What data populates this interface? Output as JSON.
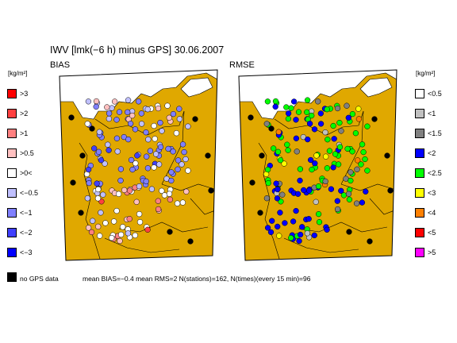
{
  "title": "IWV [lmk(−6 h) minus GPS] 30.06.2007",
  "panels": {
    "bias": {
      "label": "BIAS"
    },
    "rmse": {
      "label": "RMSE"
    }
  },
  "legend_unit": {
    "left": "[kg/m²]",
    "right": "[kg/m²]"
  },
  "bias_legend": [
    {
      "label": ">3",
      "color": "#ff0000"
    },
    {
      "label": ">2",
      "color": "#ff4040"
    },
    {
      "label": ">1",
      "color": "#ff8080"
    },
    {
      "label": ">0.5",
      "color": "#ffc0c0"
    },
    {
      "label": ">0<",
      "color": "#ffffff"
    },
    {
      "label": "<−0.5",
      "color": "#c0c0ff"
    },
    {
      "label": "<−1",
      "color": "#8080ff"
    },
    {
      "label": "<−2",
      "color": "#4040ff"
    },
    {
      "label": "<−3",
      "color": "#0000ff"
    }
  ],
  "rmse_legend": [
    {
      "label": "<0.5",
      "color": "#ffffff"
    },
    {
      "label": "<1",
      "color": "#c0c0c0"
    },
    {
      "label": "<1.5",
      "color": "#808080"
    },
    {
      "label": "<2",
      "color": "#0000ff"
    },
    {
      "label": "<2.5",
      "color": "#00ff00"
    },
    {
      "label": "<3",
      "color": "#ffff00"
    },
    {
      "label": "<4",
      "color": "#ff8000"
    },
    {
      "label": "<5",
      "color": "#ff0000"
    },
    {
      "label": ">5",
      "color": "#ff00ff"
    }
  ],
  "no_gps_label": "no GPS data",
  "stats_line": "mean BIAS=−0.4  mean RMS=2  N(stations)=162, N(times)(every 15 min)=96",
  "colors": {
    "land": "#e0a800",
    "sea": "#ffffff",
    "border": "#000000",
    "no_gps": "#000000"
  }
}
